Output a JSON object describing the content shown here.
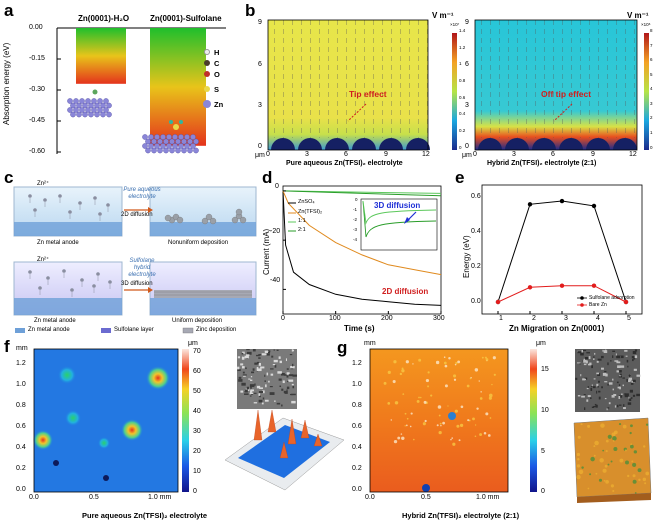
{
  "panels": {
    "a": {
      "label": "a",
      "col1": "Zn(0001)-H₂O",
      "col2": "Zn(0001)-Sulfolane",
      "ylabel": "Absorption energy (eV)",
      "yticks": [
        "0.00",
        "-0.15",
        "-0.30",
        "-0.45",
        "-0.60"
      ],
      "legend": [
        "H",
        "C",
        "O",
        "S",
        "Zn"
      ],
      "chart_data": {
        "type": "bar",
        "categories": [
          "Zn(0001)-H₂O",
          "Zn(0001)-Sulfolane"
        ],
        "values": [
          -0.27,
          -0.57
        ],
        "ylim": [
          -0.65,
          0.0
        ],
        "ylabel": "Absorption energy (eV)"
      }
    },
    "b": {
      "label": "b",
      "unit": "V m⁻¹",
      "left_caption": "Pure aqueous Zn(TFSI)₂ electrolyte",
      "right_caption": "Hybrid Zn(TFSI)₂ electrolyte (2:1)",
      "left_annot": "Tip effect",
      "right_annot": "Off tip effect",
      "yticks": [
        "0",
        "3",
        "6",
        "9"
      ],
      "xticks": [
        "0",
        "3",
        "6",
        "9",
        "12"
      ],
      "axis_unit": "μm",
      "cbar_ticks_left": [
        "1.4",
        "1.2",
        "1",
        "0.8",
        "0.6",
        "0.4",
        "0.2",
        "0"
      ],
      "cbar_exp": "×10⁷",
      "cbar_ticks_right": [
        "8",
        "7",
        "6",
        "5",
        "4",
        "3",
        "2",
        "1",
        "0"
      ],
      "cbar_exp_right": "×10⁶"
    },
    "c": {
      "label": "c",
      "ion": "Zn²⁺",
      "top_electrolyte": "Pure aqueous electrolyte",
      "top_process": "2D diffusion",
      "top_anode": "Zn metal anode",
      "top_result": "Nonuniform deposition",
      "bottom_electrolyte": "Sulfolane hybrid electrolyte",
      "bottom_process": "3D diffusion",
      "bottom_anode": "Zn metal anode",
      "bottom_result": "Uniform deposition",
      "legend": [
        "Zn metal anode",
        "Sulfolane layer",
        "Zinc deposition"
      ]
    },
    "d": {
      "label": "d",
      "ylabel": "Current (mA)",
      "xlabel": "Time (s)",
      "legend": [
        "ZnSO₄",
        "Zn(TFSI)₂",
        "1:1",
        "2:1"
      ],
      "annot_3d": "3D diffusion",
      "annot_2d": "2D diffusion",
      "chart_data": {
        "type": "line",
        "xlabel": "Time (s)",
        "ylabel": "Current (mA)",
        "xlim": [
          0,
          300
        ],
        "ylim": [
          -50,
          2
        ],
        "xticks": [
          "0",
          "100",
          "200",
          "300"
        ],
        "yticks": [
          "0",
          "-20",
          "-40"
        ],
        "inset_yticks": [
          "0",
          "-1",
          "-2",
          "-3",
          "-4"
        ],
        "series": [
          {
            "name": "ZnSO₄",
            "x": [
              0,
              5,
              20,
              50,
              100,
              150,
              200,
              250,
              300
            ],
            "y": [
              0,
              -22,
              -33,
              -38,
              -42,
              -44,
              -45,
              -46,
              -46.5
            ]
          },
          {
            "name": "Zn(TFSI)₂",
            "x": [
              0,
              10,
              50,
              100,
              150,
              200,
              250,
              300
            ],
            "y": [
              0,
              -5,
              -14,
              -21,
              -26,
              -30,
              -32,
              -34
            ]
          },
          {
            "name": "1:1",
            "x": [
              0,
              300
            ],
            "y": [
              0,
              -1
            ]
          },
          {
            "name": "2:1",
            "x": [
              0,
              300
            ],
            "y": [
              0,
              -2
            ]
          }
        ]
      }
    },
    "e": {
      "label": "e",
      "ylabel": "Energy (eV)",
      "xlabel": "Zn Migration on Zn(0001)",
      "legend": [
        "Sulfolane adsorption",
        "Bare Zn"
      ],
      "chart_data": {
        "type": "line",
        "xlabel": "Zn Migration on Zn(0001)",
        "ylabel": "Energy (eV)",
        "x": [
          1,
          2,
          3,
          4,
          5
        ],
        "xlim": [
          0.5,
          5.5
        ],
        "ylim": [
          0,
          0.7
        ],
        "yticks": [
          "0.0",
          "0.2",
          "0.4",
          "0.6"
        ],
        "xticks": [
          "1",
          "2",
          "3",
          "4",
          "5"
        ],
        "series": [
          {
            "name": "Sulfolane adsorption",
            "x": [
              1,
              2,
              3,
              4,
              5
            ],
            "y": [
              0.0,
              0.6,
              0.62,
              0.59,
              0.0
            ]
          },
          {
            "name": "Bare Zn",
            "x": [
              1,
              2,
              3,
              4,
              5
            ],
            "y": [
              0.0,
              0.09,
              0.1,
              0.1,
              0.0
            ]
          }
        ]
      }
    },
    "f": {
      "label": "f",
      "unit": "mm",
      "cbar_unit": "μm",
      "yticks": [
        "1.2",
        "1.0",
        "0.8",
        "0.6",
        "0.4",
        "0.2",
        "0.0"
      ],
      "xticks": [
        "0.0",
        "0.5",
        "1.0 mm"
      ],
      "cbar_ticks": [
        "70",
        "60",
        "50",
        "40",
        "30",
        "20",
        "10",
        "0"
      ],
      "caption": "Pure aqueous Zn(TFSI)₂ electrolyte"
    },
    "g": {
      "label": "g",
      "unit": "mm",
      "cbar_unit": "μm",
      "yticks": [
        "1.2",
        "1.0",
        "0.8",
        "0.6",
        "0.4",
        "0.2",
        "0.0"
      ],
      "xticks": [
        "0.0",
        "0.5",
        "1.0 mm"
      ],
      "cbar_ticks": [
        "15",
        "10",
        "5",
        "0"
      ],
      "caption": "Hybrid Zn(TFSI)₂ electrolyte (2:1)"
    }
  }
}
